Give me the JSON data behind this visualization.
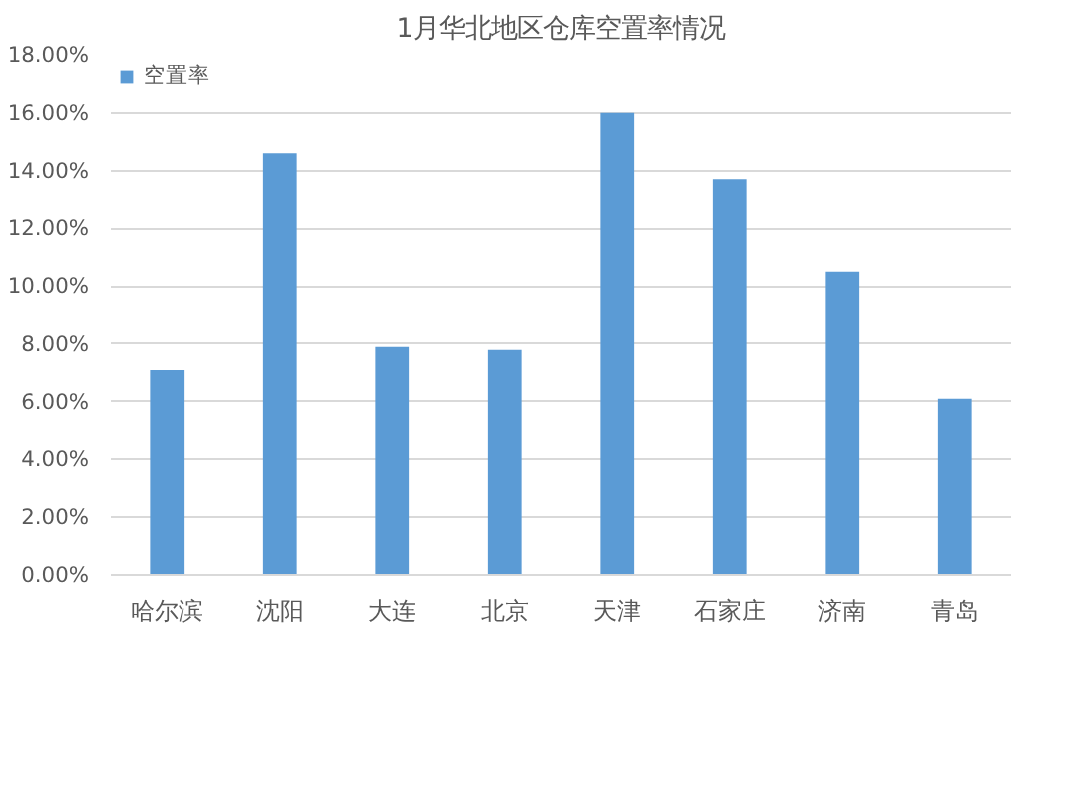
{
  "chart_data": {
    "type": "bar",
    "title": "1月华北地区仓库空置率情况",
    "categories": [
      "哈尔滨",
      "沈阳",
      "大连",
      "北京",
      "天津",
      "石家庄",
      "济南",
      "青岛"
    ],
    "series": [
      {
        "name": "空置率",
        "color": "#5b9bd5",
        "values": [
          7.1,
          14.6,
          7.9,
          7.8,
          16.0,
          13.7,
          10.5,
          6.1
        ]
      }
    ],
    "ylim": [
      0,
      18
    ],
    "yticks": [
      {
        "value": 0,
        "label": "0.00%"
      },
      {
        "value": 2,
        "label": "2.00%"
      },
      {
        "value": 4,
        "label": "4.00%"
      },
      {
        "value": 6,
        "label": "6.00%"
      },
      {
        "value": 8,
        "label": "8.00%"
      },
      {
        "value": 10,
        "label": "10.00%"
      },
      {
        "value": 12,
        "label": "12.00%"
      },
      {
        "value": 14,
        "label": "14.00%"
      },
      {
        "value": 16,
        "label": "16.00%"
      },
      {
        "value": 18,
        "label": "18.00%"
      }
    ],
    "grid": "y",
    "legend": "top left"
  }
}
